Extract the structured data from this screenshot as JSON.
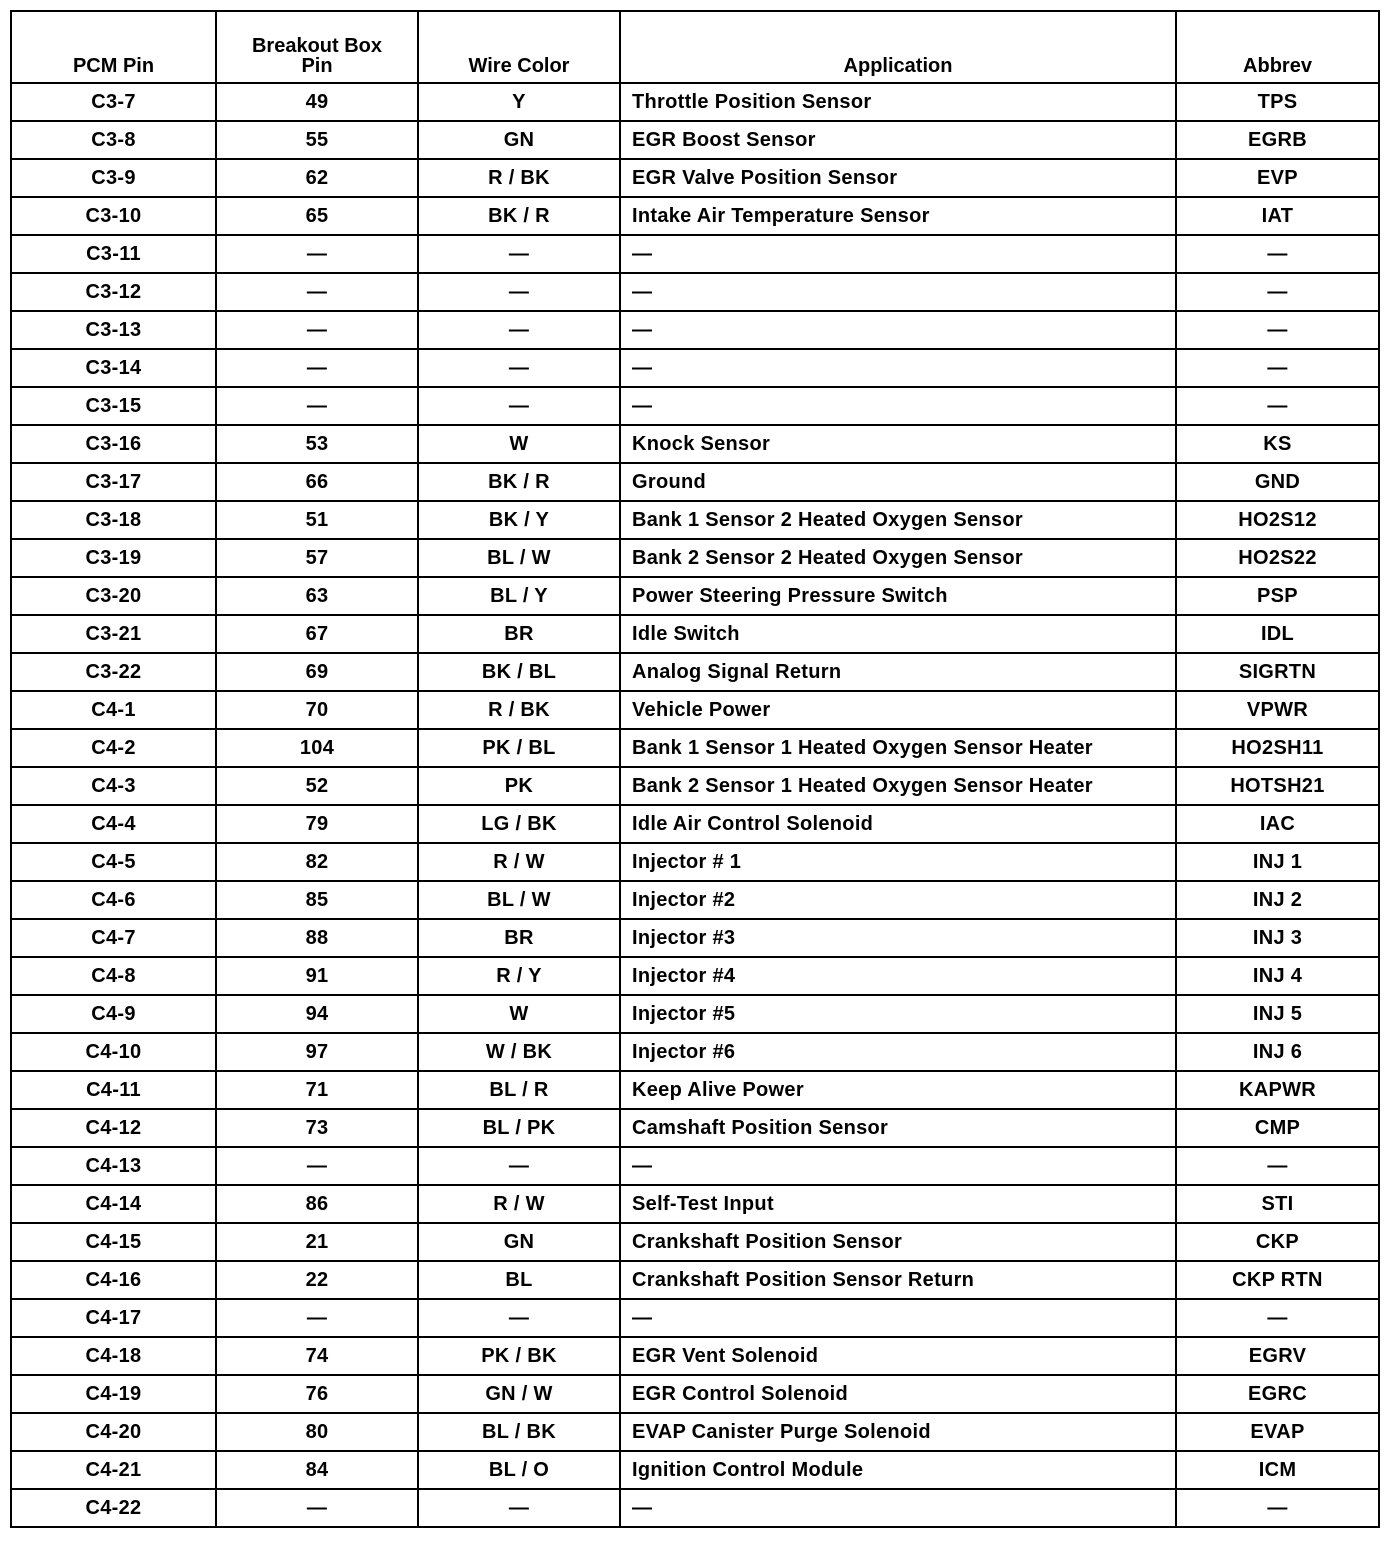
{
  "headers": [
    "PCM Pin",
    "Breakout Box Pin",
    "Wire Color",
    "Application",
    "Abbrev"
  ],
  "rows": [
    [
      "C3-7",
      "49",
      "Y",
      "Throttle Position Sensor",
      "TPS"
    ],
    [
      "C3-8",
      "55",
      "GN",
      "EGR Boost Sensor",
      "EGRB"
    ],
    [
      "C3-9",
      "62",
      "R / BK",
      "EGR Valve Position Sensor",
      "EVP"
    ],
    [
      "C3-10",
      "65",
      "BK / R",
      "Intake Air Temperature Sensor",
      "IAT"
    ],
    [
      "C3-11",
      "—",
      "—",
      "—",
      "—"
    ],
    [
      "C3-12",
      "—",
      "—",
      "—",
      "—"
    ],
    [
      "C3-13",
      "—",
      "—",
      "—",
      "—"
    ],
    [
      "C3-14",
      "—",
      "—",
      "—",
      "—"
    ],
    [
      "C3-15",
      "—",
      "—",
      "—",
      "—"
    ],
    [
      "C3-16",
      "53",
      "W",
      "Knock Sensor",
      "KS"
    ],
    [
      "C3-17",
      "66",
      "BK / R",
      "Ground",
      "GND"
    ],
    [
      "C3-18",
      "51",
      "BK / Y",
      "Bank 1 Sensor 2 Heated Oxygen Sensor",
      "HO2S12"
    ],
    [
      "C3-19",
      "57",
      "BL / W",
      "Bank 2 Sensor 2 Heated Oxygen Sensor",
      "HO2S22"
    ],
    [
      "C3-20",
      "63",
      "BL / Y",
      "Power Steering Pressure Switch",
      "PSP"
    ],
    [
      "C3-21",
      "67",
      "BR",
      "Idle Switch",
      "IDL"
    ],
    [
      "C3-22",
      "69",
      "BK / BL",
      "Analog Signal Return",
      "SIGRTN"
    ],
    [
      "C4-1",
      "70",
      "R / BK",
      "Vehicle Power",
      "VPWR"
    ],
    [
      "C4-2",
      "104",
      "PK / BL",
      "Bank 1 Sensor 1 Heated Oxygen Sensor Heater",
      "HO2SH11"
    ],
    [
      "C4-3",
      "52",
      "PK",
      "Bank 2 Sensor 1 Heated Oxygen Sensor Heater",
      "HOTSH21"
    ],
    [
      "C4-4",
      "79",
      "LG / BK",
      "Idle Air Control Solenoid",
      "IAC"
    ],
    [
      "C4-5",
      "82",
      "R / W",
      "Injector # 1",
      "INJ 1"
    ],
    [
      "C4-6",
      "85",
      "BL / W",
      "Injector #2",
      "INJ 2"
    ],
    [
      "C4-7",
      "88",
      "BR",
      "Injector #3",
      "INJ 3"
    ],
    [
      "C4-8",
      "91",
      "R / Y",
      "Injector #4",
      "INJ 4"
    ],
    [
      "C4-9",
      "94",
      "W",
      "Injector #5",
      "INJ 5"
    ],
    [
      "C4-10",
      "97",
      "W / BK",
      "Injector #6",
      "INJ 6"
    ],
    [
      "C4-11",
      "71",
      "BL / R",
      "Keep Alive Power",
      "KAPWR"
    ],
    [
      "C4-12",
      "73",
      "BL / PK",
      "Camshaft Position Sensor",
      "CMP"
    ],
    [
      "C4-13",
      "—",
      "—",
      "—",
      "—"
    ],
    [
      "C4-14",
      "86",
      "R / W",
      "Self-Test Input",
      "STI"
    ],
    [
      "C4-15",
      "21",
      "GN",
      "Crankshaft Position Sensor",
      "CKP"
    ],
    [
      "C4-16",
      "22",
      "BL",
      "Crankshaft Position Sensor Return",
      "CKP RTN"
    ],
    [
      "C4-17",
      "—",
      "—",
      "—",
      "—"
    ],
    [
      "C4-18",
      "74",
      "PK / BK",
      "EGR Vent Solenoid",
      "EGRV"
    ],
    [
      "C4-19",
      "76",
      "GN / W",
      "EGR Control Solenoid",
      "EGRC"
    ],
    [
      "C4-20",
      "80",
      "BL / BK",
      "EVAP Canister Purge Solenoid",
      "EVAP"
    ],
    [
      "C4-21",
      "84",
      "BL / O",
      "Ignition Control Module",
      "ICM"
    ],
    [
      "C4-22",
      "—",
      "—",
      "—",
      "—"
    ]
  ]
}
